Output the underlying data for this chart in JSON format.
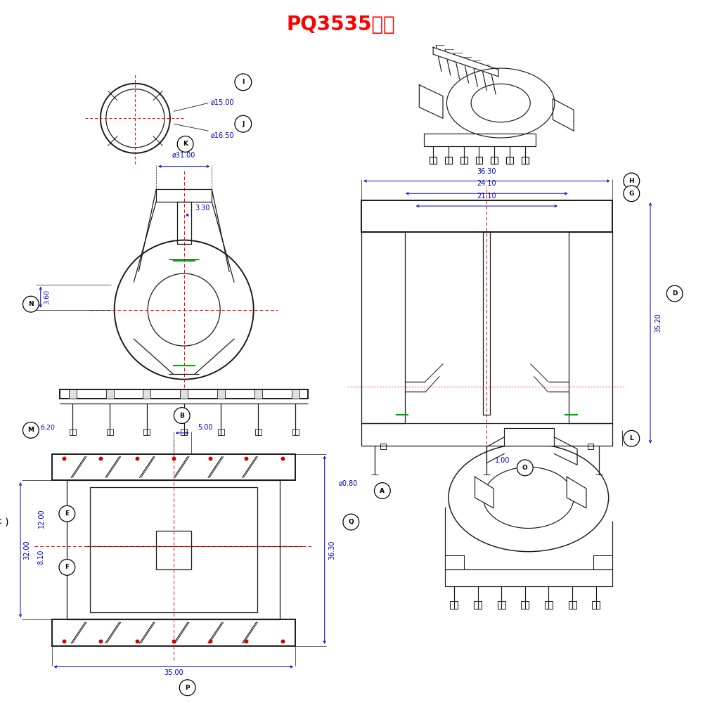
{
  "title": "PQ3535双槽",
  "title_color": "#FF0000",
  "title_fontsize": 20,
  "dim_color": "#0000CD",
  "line_color": "#1a1a1a",
  "red_dash_color": "#FF0000",
  "bg_color": "#FFFFFF",
  "dims": {
    "phi15": "ø15.00",
    "phi16_5": "ø16.50",
    "phi31": "ø31.00",
    "dim3_3": "3.30",
    "dim3_6": "3.60",
    "dim6_2": "6.20",
    "dim36_3_right": "36.30",
    "dim24_1": "24.10",
    "dim21_1": "21.10",
    "dim35_2": "35.20",
    "dim1_0": "1.00",
    "phi0_8": "ø0.80",
    "dim5_0": "5.00",
    "dim32_0": "32.00",
    "dim12_0": "12.00",
    "dim8_1": "8.10",
    "dim36_3_bot": "36.30",
    "dim35_0": "35.00"
  },
  "labels": [
    "A",
    "B",
    "C",
    "D",
    "E",
    "F",
    "G",
    "H",
    "I",
    "J",
    "K",
    "L",
    "M",
    "N",
    "O",
    "P",
    "Q"
  ]
}
